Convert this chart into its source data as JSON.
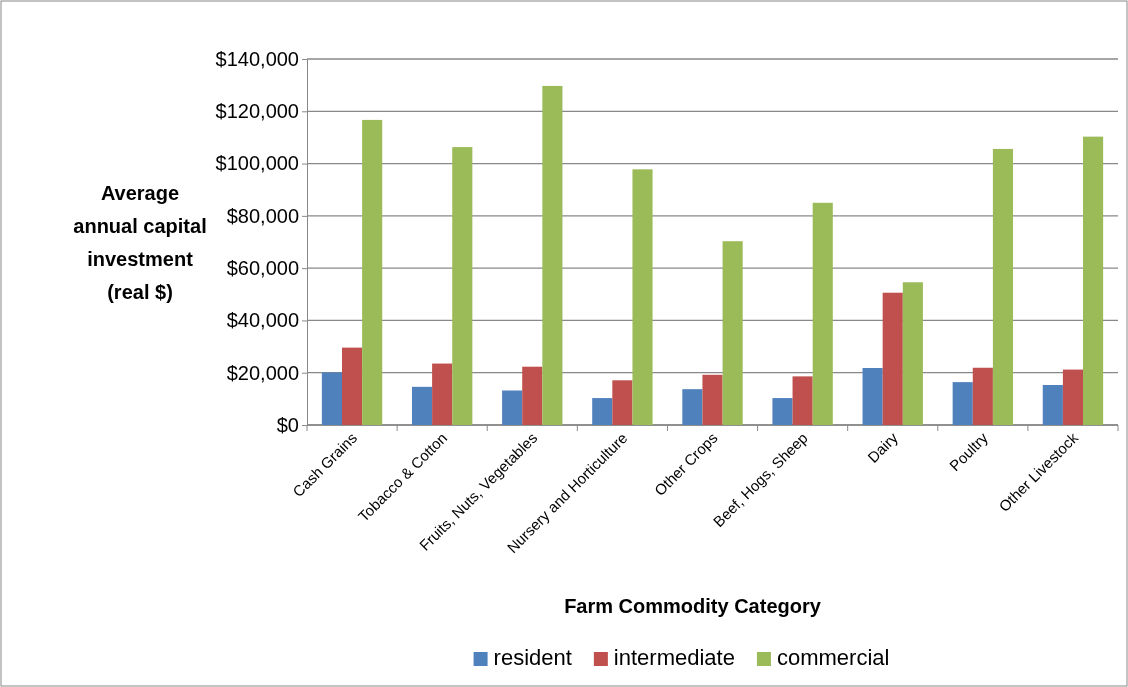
{
  "chart_data": {
    "type": "bar",
    "xlabel": "Farm Commodity Category",
    "ylabel": "Average annual capital investment (real $)",
    "categories": [
      "Cash Grains",
      "Tobacco & Cotton",
      "Fruits, Nuts, Vegetables",
      "Nursery and Horticulture",
      "Other Crops",
      "Beef, Hogs, Sheep",
      "Dairy",
      "Poultry",
      "Other Livestock"
    ],
    "series": [
      {
        "name": "resident",
        "color": "#4f81bd",
        "values": [
          20100,
          14600,
          13200,
          10300,
          13700,
          10300,
          21800,
          16400,
          15300
        ]
      },
      {
        "name": "intermediate",
        "color": "#c0504d",
        "values": [
          29600,
          23500,
          22300,
          17100,
          19200,
          18600,
          50600,
          21900,
          21200
        ]
      },
      {
        "name": "commercial",
        "color": "#9bbb59",
        "values": [
          116700,
          106300,
          129700,
          97800,
          70300,
          85000,
          54600,
          105600,
          110300
        ]
      }
    ],
    "ylim": [
      0,
      140000
    ],
    "yticks": [
      {
        "value": 0,
        "label": "$0"
      },
      {
        "value": 20000,
        "label": "$20,000"
      },
      {
        "value": 40000,
        "label": "$40,000"
      },
      {
        "value": 60000,
        "label": "$60,000"
      },
      {
        "value": 80000,
        "label": "$80,000"
      },
      {
        "value": 100000,
        "label": "$100,000"
      },
      {
        "value": 120000,
        "label": "$120,000"
      },
      {
        "value": 140000,
        "label": "$140,000"
      }
    ],
    "grid": "y",
    "legend": "bottom"
  }
}
